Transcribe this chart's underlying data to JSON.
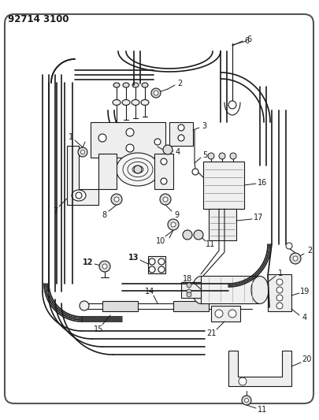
{
  "title": "92714 3100",
  "bg_color": "#ffffff",
  "line_color": "#1a1a1a",
  "fig_width": 4.06,
  "fig_height": 5.33,
  "dpi": 100,
  "border_color": "#888888"
}
